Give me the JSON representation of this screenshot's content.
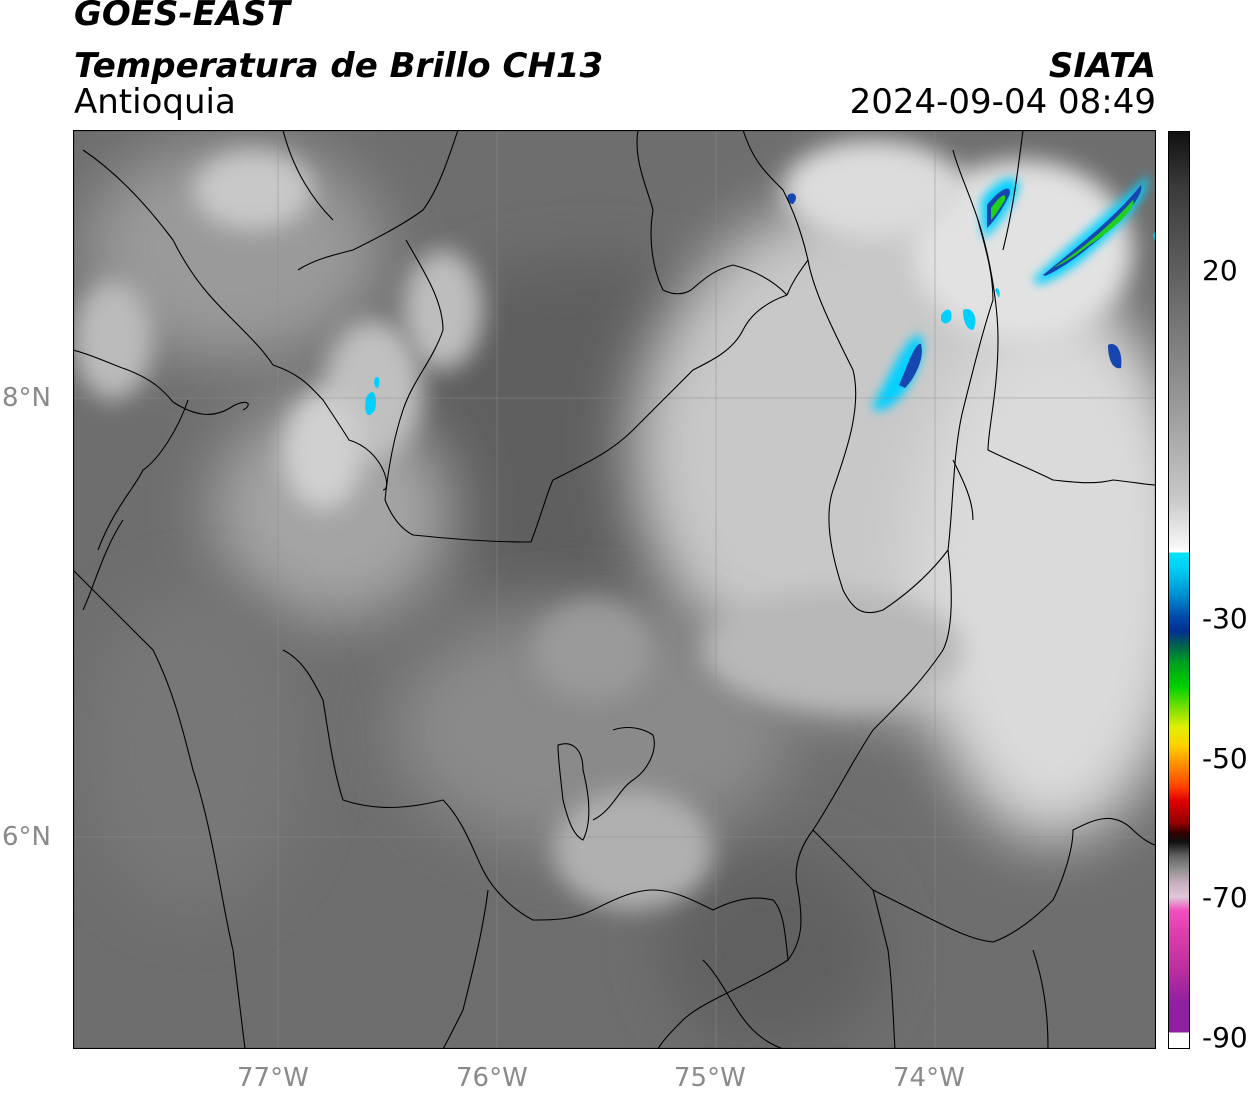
{
  "header": {
    "satellite": "GOES-EAST",
    "product": "Temperatura de Brillo CH13",
    "region": "Antioquia",
    "organization": "SIATA",
    "datetime": "2024-09-04 08:49"
  },
  "axes": {
    "lon_ticks": [
      "77°W",
      "76°W",
      "75°W",
      "74°W"
    ],
    "lat_ticks": [
      "8°N",
      "6°N"
    ]
  },
  "colorbar": {
    "labels": [
      "20",
      "-30",
      "-50",
      "-70",
      "-90"
    ]
  },
  "colors": {
    "border": "#000000",
    "tick_text": "#8a8a8a",
    "cloud_cyan": "#00d0ff",
    "cloud_blue": "#1846b0",
    "cloud_green": "#1fd01f"
  }
}
